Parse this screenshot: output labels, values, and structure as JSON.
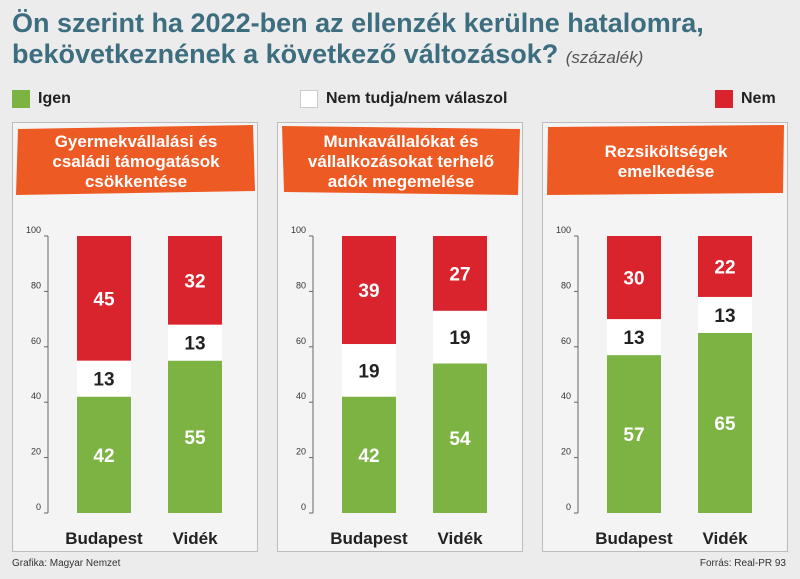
{
  "title_main": "Ön szerint ha 2022-ben az ellenzék kerülne hatalomra, bekövetkeznének a következő változások?",
  "title_unit": "(százalék)",
  "legend": [
    {
      "label": "Igen",
      "color": "#7cb342"
    },
    {
      "label": "Nem tudja/nem válaszol",
      "color": "#ffffff"
    },
    {
      "label": "Nem",
      "color": "#d9232d"
    }
  ],
  "colors": {
    "banner": "#ee5a24",
    "igen": "#7cb342",
    "nemtudja": "#ffffff",
    "nem": "#d9232d"
  },
  "chart_data": [
    {
      "type": "bar",
      "stacked": true,
      "title": "Gyermekvállalási és\ncsaládi támogatások\ncsökkentése",
      "categories": [
        "Budapest",
        "Vidék"
      ],
      "series": [
        {
          "name": "Igen",
          "values": [
            42,
            55
          ]
        },
        {
          "name": "Nem tudja/nem válaszol",
          "values": [
            13,
            13
          ]
        },
        {
          "name": "Nem",
          "values": [
            45,
            32
          ]
        }
      ],
      "yticks": [
        0,
        20,
        40,
        60,
        80,
        100
      ],
      "ylim": [
        0,
        100
      ]
    },
    {
      "type": "bar",
      "stacked": true,
      "title": "Munkavállalókat és\nvállalkozásokat terhelő\nadók megemelése",
      "categories": [
        "Budapest",
        "Vidék"
      ],
      "series": [
        {
          "name": "Igen",
          "values": [
            42,
            54
          ]
        },
        {
          "name": "Nem tudja/nem válaszol",
          "values": [
            19,
            19
          ]
        },
        {
          "name": "Nem",
          "values": [
            39,
            27
          ]
        }
      ],
      "yticks": [
        0,
        20,
        40,
        60,
        80,
        100
      ],
      "ylim": [
        0,
        100
      ]
    },
    {
      "type": "bar",
      "stacked": true,
      "title": "Rezsiköltségek\nemelkedése",
      "categories": [
        "Budapest",
        "Vidék"
      ],
      "series": [
        {
          "name": "Igen",
          "values": [
            57,
            65
          ]
        },
        {
          "name": "Nem tudja/nem válaszol",
          "values": [
            13,
            13
          ]
        },
        {
          "name": "Nem",
          "values": [
            30,
            22
          ]
        }
      ],
      "yticks": [
        0,
        20,
        40,
        60,
        80,
        100
      ],
      "ylim": [
        0,
        100
      ]
    }
  ],
  "footer": {
    "left": "Grafika: Magyar Nemzet",
    "right": "Forrás: Real-PR 93"
  }
}
